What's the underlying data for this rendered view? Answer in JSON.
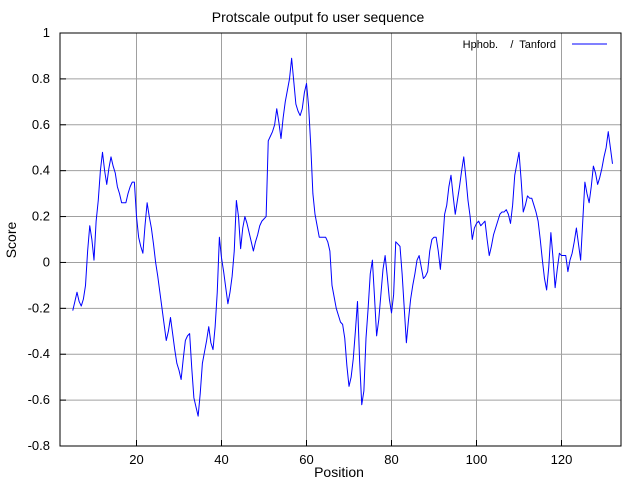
{
  "chart_data": {
    "type": "line",
    "title": "Protscale output fo user sequence",
    "xlabel": "Position",
    "ylabel": "Score",
    "xlim": [
      2,
      134
    ],
    "ylim": [
      -0.8,
      1.0
    ],
    "xticks": [
      20,
      40,
      60,
      80,
      100,
      120
    ],
    "yticks": [
      -0.8,
      -0.6,
      -0.4,
      -0.2,
      0,
      0.2,
      0.4,
      0.6,
      0.8,
      1
    ],
    "ytick_labels": [
      "-0.8",
      "-0.6",
      "-0.4",
      "-0.2",
      "0",
      "0.2",
      "0.4",
      "0.6",
      "0.8",
      "1"
    ],
    "grid": true,
    "legend": {
      "placement": "top-right",
      "label": "Hphob.    /  Tanford"
    },
    "series": [
      {
        "color": "#0000ff",
        "x_start": 5,
        "x_step": 0.5,
        "values": [
          -0.21,
          -0.17,
          -0.13,
          -0.17,
          -0.19,
          -0.16,
          -0.1,
          0.05,
          0.16,
          0.1,
          0.01,
          0.18,
          0.27,
          0.4,
          0.48,
          0.4,
          0.34,
          0.41,
          0.46,
          0.42,
          0.39,
          0.33,
          0.3,
          0.26,
          0.26,
          0.26,
          0.3,
          0.33,
          0.35,
          0.35,
          0.2,
          0.11,
          0.07,
          0.04,
          0.16,
          0.26,
          0.2,
          0.15,
          0.08,
          0.0,
          -0.06,
          -0.13,
          -0.2,
          -0.27,
          -0.34,
          -0.3,
          -0.24,
          -0.31,
          -0.38,
          -0.44,
          -0.47,
          -0.51,
          -0.42,
          -0.34,
          -0.32,
          -0.31,
          -0.46,
          -0.59,
          -0.63,
          -0.67,
          -0.57,
          -0.44,
          -0.39,
          -0.34,
          -0.28,
          -0.35,
          -0.38,
          -0.28,
          -0.13,
          0.11,
          0.02,
          -0.04,
          -0.11,
          -0.18,
          -0.13,
          -0.06,
          0.05,
          0.27,
          0.2,
          0.06,
          0.15,
          0.2,
          0.17,
          0.13,
          0.09,
          0.05,
          0.09,
          0.12,
          0.16,
          0.18,
          0.19,
          0.2,
          0.53,
          0.55,
          0.57,
          0.6,
          0.67,
          0.61,
          0.54,
          0.63,
          0.7,
          0.75,
          0.8,
          0.89,
          0.79,
          0.69,
          0.66,
          0.64,
          0.67,
          0.74,
          0.78,
          0.68,
          0.51,
          0.3,
          0.21,
          0.16,
          0.11,
          0.11,
          0.11,
          0.11,
          0.09,
          0.05,
          -0.1,
          -0.15,
          -0.2,
          -0.23,
          -0.26,
          -0.27,
          -0.33,
          -0.45,
          -0.54,
          -0.5,
          -0.42,
          -0.3,
          -0.17,
          -0.43,
          -0.62,
          -0.56,
          -0.33,
          -0.2,
          -0.05,
          0.01,
          -0.15,
          -0.32,
          -0.25,
          -0.14,
          -0.03,
          0.03,
          -0.06,
          -0.16,
          -0.22,
          -0.14,
          0.09,
          0.08,
          0.07,
          -0.05,
          -0.2,
          -0.35,
          -0.25,
          -0.16,
          -0.1,
          -0.05,
          0.01,
          0.03,
          -0.02,
          -0.07,
          -0.06,
          -0.04,
          0.05,
          0.1,
          0.11,
          0.11,
          0.05,
          -0.03,
          0.08,
          0.21,
          0.25,
          0.33,
          0.38,
          0.29,
          0.21,
          0.27,
          0.33,
          0.4,
          0.46,
          0.37,
          0.27,
          0.2,
          0.1,
          0.15,
          0.17,
          0.18,
          0.16,
          0.17,
          0.18,
          0.1,
          0.03,
          0.07,
          0.12,
          0.15,
          0.18,
          0.21,
          0.22,
          0.22,
          0.23,
          0.21,
          0.17,
          0.25,
          0.38,
          0.43,
          0.48,
          0.36,
          0.22,
          0.25,
          0.29,
          0.28,
          0.28,
          0.25,
          0.22,
          0.18,
          0.1,
          0.01,
          -0.07,
          -0.12,
          -0.02,
          0.13,
          0.02,
          -0.11,
          -0.03,
          0.04,
          0.03,
          0.03,
          0.03,
          -0.04,
          0.01,
          0.04,
          0.09,
          0.15,
          0.08,
          0.01,
          0.18,
          0.35,
          0.3,
          0.26,
          0.33,
          0.42,
          0.39,
          0.34,
          0.37,
          0.41,
          0.46,
          0.5,
          0.57,
          0.5,
          0.43
        ]
      }
    ]
  }
}
